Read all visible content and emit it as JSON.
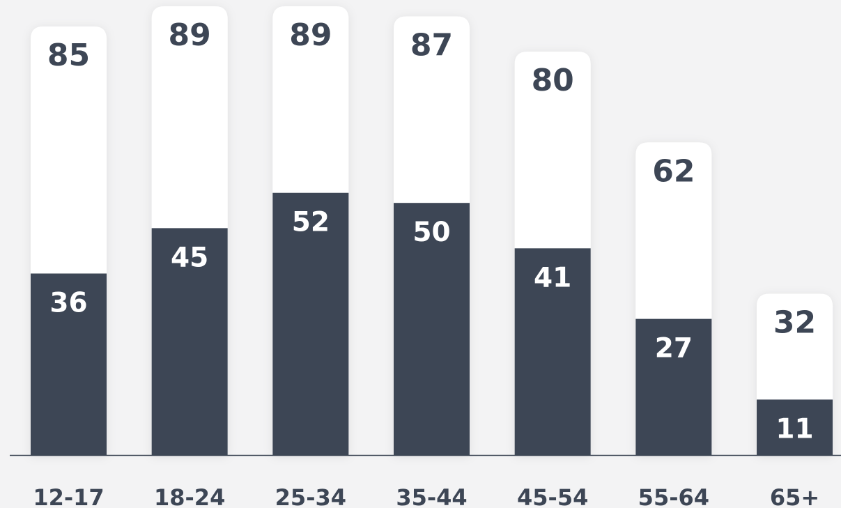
{
  "chart_data": {
    "type": "bar",
    "categories": [
      "12-17",
      "18-24",
      "25-34",
      "35-44",
      "45-54",
      "55-64",
      "65+"
    ],
    "series": [
      {
        "values": [
          85,
          89,
          89,
          87,
          80,
          62,
          32
        ]
      },
      {
        "values": [
          36,
          45,
          52,
          50,
          41,
          27,
          11
        ]
      }
    ],
    "ylim": [
      0,
      89
    ],
    "grid": false,
    "colors": {
      "outer_bar": "#ffffff",
      "inner_bar": "#3d4655",
      "background": "#f3f3f4",
      "axis": "#3d4655"
    }
  }
}
